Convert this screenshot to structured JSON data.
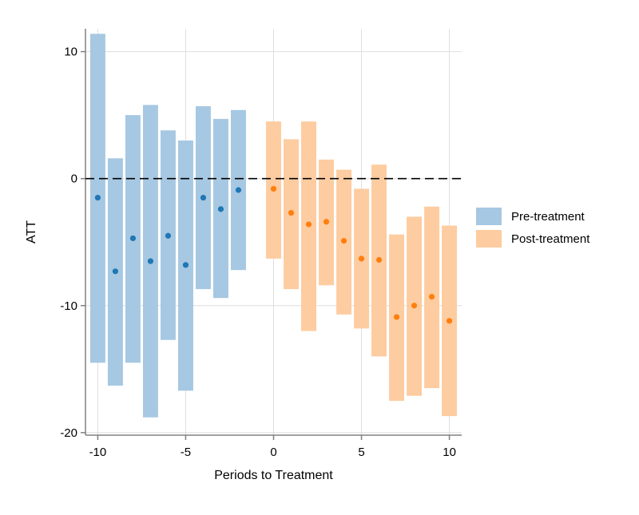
{
  "chart_data": {
    "type": "scatter",
    "subtype": "event-study with confidence interval bars",
    "title": "",
    "xlabel": "Periods to Treatment",
    "ylabel": "ATT",
    "xlim": [
      -10.7,
      10.7
    ],
    "ylim": [
      -20.2,
      11.8
    ],
    "xticks": [
      -10,
      -5,
      0,
      5,
      10
    ],
    "xtick_labels": [
      "-10",
      "-5",
      "0",
      "5",
      "10"
    ],
    "yticks": [
      10,
      0,
      -10,
      -20
    ],
    "ytick_labels": [
      "10",
      "0",
      "-10",
      "-20"
    ],
    "grid": true,
    "reference_line": {
      "y": 0,
      "style": "dashed"
    },
    "legend_position": "right",
    "series": [
      {
        "name": "Pre-treatment",
        "color": "#1f77b4",
        "bar_color": "#a6c8e2",
        "x": [
          -10,
          -9,
          -8,
          -7,
          -6,
          -5,
          -4,
          -3,
          -2
        ],
        "y": [
          -1.5,
          -7.3,
          -4.7,
          -6.5,
          -4.5,
          -6.8,
          -1.5,
          -2.4,
          -0.9
        ],
        "ci_low": [
          -14.5,
          -16.3,
          -14.5,
          -18.8,
          -12.7,
          -16.7,
          -8.7,
          -9.4,
          -7.2
        ],
        "ci_high": [
          11.4,
          1.6,
          5.0,
          5.8,
          3.8,
          3.0,
          5.7,
          4.7,
          5.4
        ]
      },
      {
        "name": "Post-treatment",
        "color": "#ff7f0e",
        "bar_color": "#fdcca0",
        "x": [
          0,
          1,
          2,
          3,
          4,
          5,
          6,
          7,
          8,
          9,
          10
        ],
        "y": [
          -0.8,
          -2.7,
          -3.6,
          -3.4,
          -4.9,
          -6.3,
          -6.4,
          -10.9,
          -10.0,
          -9.3,
          -11.2
        ],
        "ci_low": [
          -6.3,
          -8.7,
          -12.0,
          -8.4,
          -10.7,
          -11.8,
          -14.0,
          -17.5,
          -17.1,
          -16.5,
          -18.7
        ],
        "ci_high": [
          4.5,
          3.1,
          4.5,
          1.5,
          0.7,
          -0.8,
          1.1,
          -4.4,
          -3.0,
          -2.2,
          -3.7
        ]
      }
    ]
  }
}
